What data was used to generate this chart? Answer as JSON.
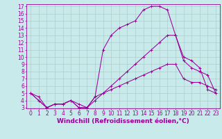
{
  "background_color": "#c8eaea",
  "grid_color": "#b0cccc",
  "line_color": "#990099",
  "xlim": [
    -0.5,
    23.5
  ],
  "ylim": [
    3,
    17
  ],
  "xticks": [
    0,
    1,
    2,
    3,
    4,
    5,
    6,
    7,
    8,
    9,
    10,
    11,
    12,
    13,
    14,
    15,
    16,
    17,
    18,
    19,
    20,
    21,
    22,
    23
  ],
  "yticks": [
    3,
    4,
    5,
    6,
    7,
    8,
    9,
    10,
    11,
    12,
    13,
    14,
    15,
    16,
    17
  ],
  "xlabel": "Windchill (Refroidissement éolien,°C)",
  "lines": [
    {
      "x": [
        0,
        1,
        2,
        3,
        4,
        5,
        6,
        7,
        8,
        9,
        10,
        11,
        12,
        13,
        14,
        15,
        16,
        17,
        18,
        19,
        20,
        21,
        22,
        23
      ],
      "y": [
        5,
        4.5,
        3,
        3.5,
        3.5,
        4,
        3.5,
        3,
        4.5,
        11,
        13,
        14,
        14.5,
        15,
        16.5,
        17,
        17,
        16.5,
        13,
        10,
        9.5,
        8.5,
        5.5,
        5
      ]
    },
    {
      "x": [
        0,
        1,
        2,
        3,
        4,
        5,
        6,
        7,
        8,
        9,
        10,
        11,
        12,
        13,
        14,
        15,
        16,
        17,
        18,
        19,
        20,
        21,
        22,
        23
      ],
      "y": [
        5,
        4,
        3,
        3.5,
        3.5,
        4,
        3,
        3,
        4,
        5,
        6,
        7,
        8,
        9,
        10,
        11,
        12,
        13,
        13,
        9.5,
        8.5,
        8,
        7.5,
        5
      ]
    },
    {
      "x": [
        0,
        1,
        2,
        3,
        4,
        5,
        6,
        7,
        8,
        9,
        10,
        11,
        12,
        13,
        14,
        15,
        16,
        17,
        18,
        19,
        20,
        21,
        22,
        23
      ],
      "y": [
        5,
        4,
        3,
        3.5,
        3.5,
        4,
        3,
        3,
        4.5,
        5,
        5.5,
        6,
        6.5,
        7,
        7.5,
        8,
        8.5,
        9,
        9,
        7,
        6.5,
        6.5,
        6,
        5.5
      ]
    }
  ],
  "tick_fontsize": 5.5,
  "xlabel_fontsize": 6.5,
  "marker_size": 2.5,
  "line_width": 0.75
}
